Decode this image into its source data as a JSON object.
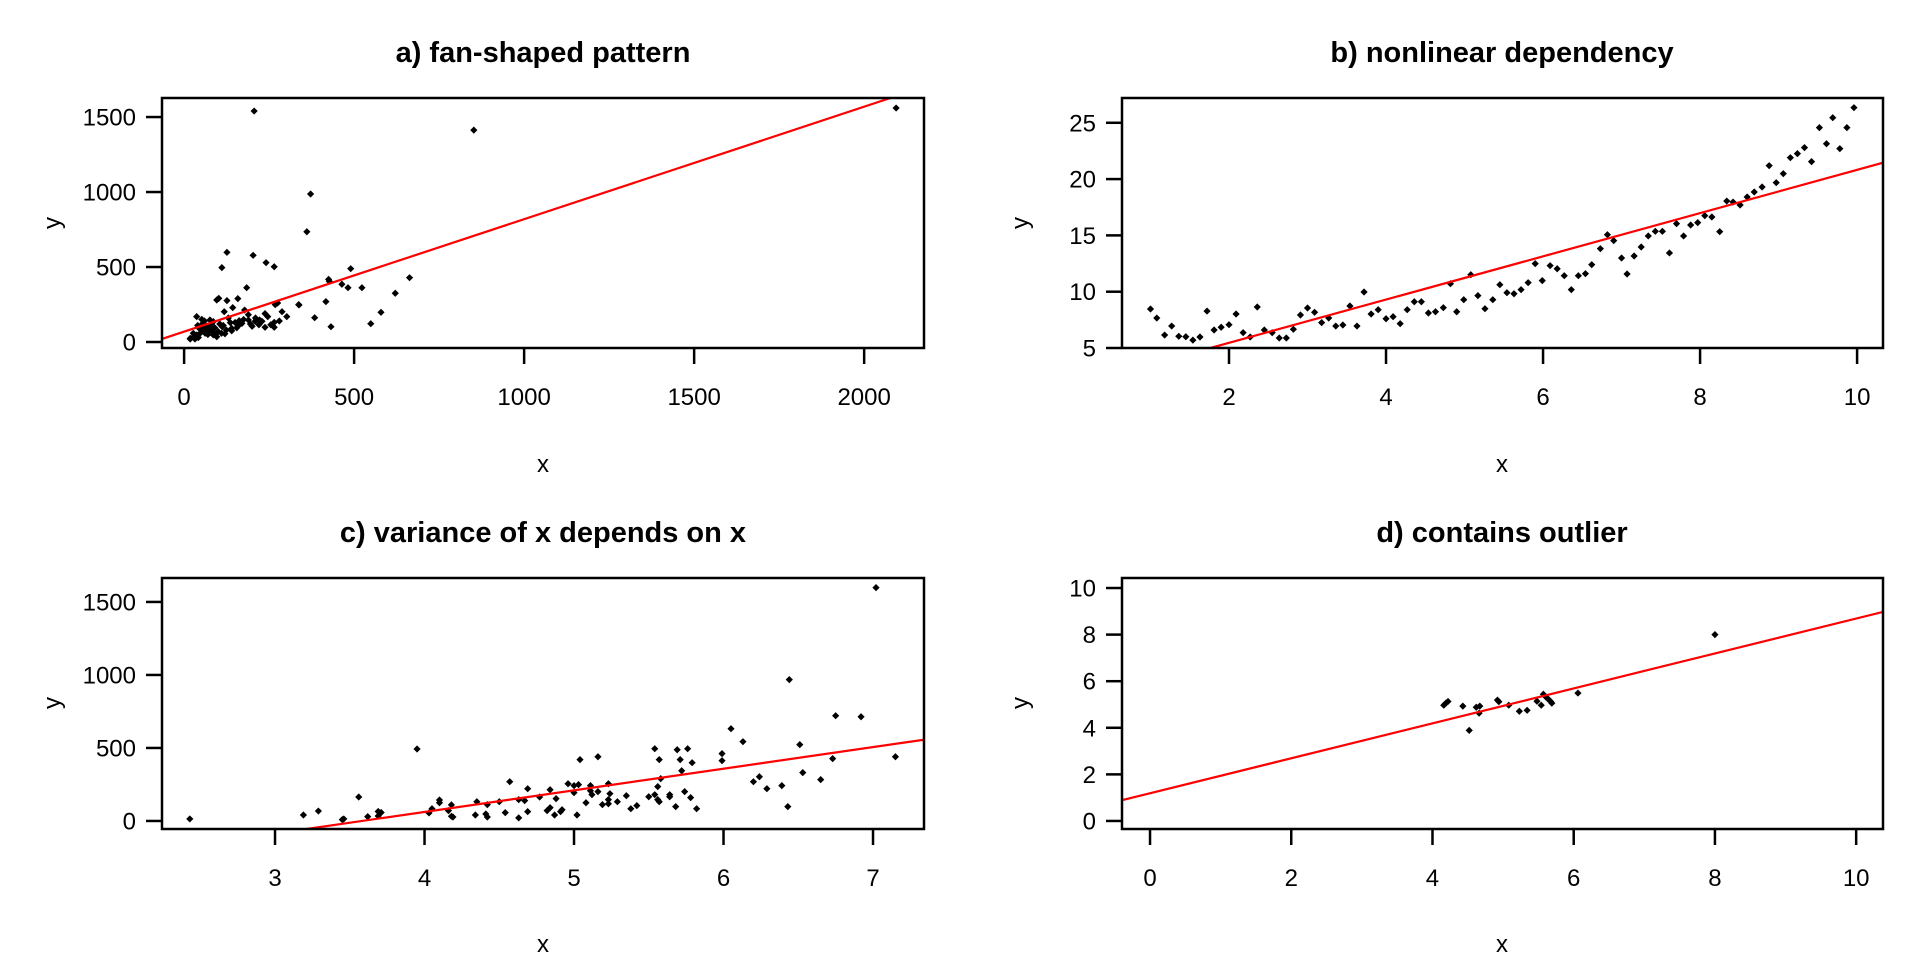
{
  "colors": {
    "points": "#000000",
    "fit_line": "#ff0000",
    "frame": "#000000",
    "background": "#ffffff"
  },
  "chart_data": [
    {
      "id": "a",
      "type": "scatter",
      "title": "a) fan-shaped pattern",
      "xlabel": "x",
      "ylabel": "y",
      "xlim": [
        -65,
        2176
      ],
      "ylim": [
        -40,
        1627
      ],
      "xticks": [
        0,
        500,
        1000,
        1500,
        2000
      ],
      "yticks": [
        0,
        500,
        1000,
        1500
      ],
      "xtick_labels": [
        "0",
        "500",
        "1000",
        "1500",
        "2000"
      ],
      "ytick_labels": [
        "0",
        "500",
        "1000",
        "1500"
      ],
      "fit_line": {
        "intercept": 69,
        "slope": 0.75
      },
      "points": [
        [
          206,
          1540
        ],
        [
          852,
          1413
        ],
        [
          2094,
          1560
        ],
        [
          372,
          987
        ],
        [
          361,
          735
        ],
        [
          126,
          598
        ],
        [
          111,
          496
        ],
        [
          203,
          578
        ],
        [
          241,
          529
        ],
        [
          265,
          502
        ],
        [
          490,
          489
        ],
        [
          663,
          429
        ],
        [
          184,
          362
        ],
        [
          425,
          418
        ],
        [
          427,
          405
        ],
        [
          464,
          385
        ],
        [
          482,
          362
        ],
        [
          523,
          362
        ],
        [
          621,
          325
        ],
        [
          579,
          198
        ],
        [
          549,
          122
        ],
        [
          432,
          102
        ],
        [
          417,
          269
        ],
        [
          384,
          162
        ],
        [
          337,
          249
        ],
        [
          302,
          169
        ],
        [
          288,
          202
        ],
        [
          268,
          249
        ],
        [
          275,
          260
        ],
        [
          96,
          280
        ],
        [
          102,
          291
        ],
        [
          126,
          276
        ],
        [
          158,
          289
        ],
        [
          143,
          229
        ],
        [
          178,
          213
        ],
        [
          118,
          202
        ],
        [
          238,
          189
        ],
        [
          246,
          169
        ],
        [
          265,
          131
        ],
        [
          265,
          98
        ],
        [
          238,
          98
        ],
        [
          229,
          138
        ],
        [
          222,
          147
        ],
        [
          209,
          138
        ],
        [
          189,
          182
        ],
        [
          189,
          147
        ],
        [
          170,
          124
        ],
        [
          162,
          142
        ],
        [
          136,
          129
        ],
        [
          140,
          91
        ],
        [
          124,
          80
        ],
        [
          112,
          102
        ],
        [
          110,
          58
        ],
        [
          96,
          35
        ],
        [
          37,
          169
        ],
        [
          52,
          151
        ],
        [
          55,
          124
        ],
        [
          76,
          147
        ],
        [
          86,
          136
        ],
        [
          67,
          102
        ],
        [
          62,
          58
        ],
        [
          18,
          24
        ],
        [
          32,
          20
        ],
        [
          37,
          47
        ],
        [
          47,
          58
        ],
        [
          76,
          80
        ],
        [
          86,
          47
        ],
        [
          96,
          58
        ],
        [
          52,
          80
        ],
        [
          57,
          102
        ],
        [
          72,
          91
        ],
        [
          27,
          58
        ],
        [
          18,
          20
        ],
        [
          338,
          247
        ],
        [
          40,
          110
        ],
        [
          45,
          90
        ],
        [
          60,
          140
        ],
        [
          65,
          75
        ],
        [
          80,
          120
        ],
        [
          90,
          95
        ],
        [
          100,
          70
        ],
        [
          105,
          120
        ],
        [
          115,
          110
        ],
        [
          130,
          160
        ],
        [
          150,
          130
        ],
        [
          160,
          110
        ],
        [
          175,
          150
        ],
        [
          195,
          120
        ],
        [
          210,
          160
        ],
        [
          220,
          115
        ],
        [
          30,
          40
        ],
        [
          42,
          30
        ],
        [
          70,
          50
        ],
        [
          85,
          65
        ],
        [
          120,
          55
        ],
        [
          140,
          75
        ],
        [
          155,
          95
        ],
        [
          200,
          105
        ],
        [
          255,
          115
        ],
        [
          280,
          140
        ]
      ]
    },
    {
      "id": "b",
      "type": "scatter",
      "title": "b) nonlinear dependency",
      "xlabel": "x",
      "ylabel": "y",
      "xlim": [
        0.637,
        10.33
      ],
      "ylim": [
        5,
        27.2
      ],
      "xticks": [
        2,
        4,
        6,
        8,
        10
      ],
      "yticks": [
        5,
        10,
        15,
        20,
        25
      ],
      "xtick_labels": [
        "2",
        "4",
        "6",
        "8",
        "10"
      ],
      "ytick_labels": [
        "5",
        "10",
        "15",
        "20",
        "25"
      ],
      "fit_line": {
        "intercept": 1.62,
        "slope": 1.92
      },
      "points": [
        [
          1.0,
          8.46
        ],
        [
          1.08,
          7.66
        ],
        [
          1.18,
          6.15
        ],
        [
          1.27,
          6.95
        ],
        [
          1.36,
          6.04
        ],
        [
          1.45,
          6.0
        ],
        [
          1.54,
          5.7
        ],
        [
          1.63,
          5.98
        ],
        [
          1.72,
          8.28
        ],
        [
          1.81,
          6.6
        ],
        [
          1.9,
          6.84
        ],
        [
          2.0,
          7.07
        ],
        [
          2.09,
          8.02
        ],
        [
          2.18,
          6.36
        ],
        [
          2.27,
          5.98
        ],
        [
          2.36,
          8.64
        ],
        [
          2.45,
          6.6
        ],
        [
          2.55,
          6.36
        ],
        [
          2.64,
          5.89
        ],
        [
          2.73,
          5.89
        ],
        [
          2.82,
          6.66
        ],
        [
          2.91,
          7.93
        ],
        [
          3.0,
          8.55
        ],
        [
          3.09,
          8.17
        ],
        [
          3.18,
          7.25
        ],
        [
          3.27,
          7.66
        ],
        [
          3.36,
          6.95
        ],
        [
          3.45,
          7.04
        ],
        [
          3.54,
          8.73
        ],
        [
          3.63,
          6.95
        ],
        [
          3.72,
          9.97
        ],
        [
          3.81,
          8.02
        ],
        [
          3.9,
          8.4
        ],
        [
          4.0,
          7.6
        ],
        [
          4.09,
          7.78
        ],
        [
          4.18,
          7.16
        ],
        [
          4.27,
          8.4
        ],
        [
          4.36,
          9.11
        ],
        [
          4.45,
          9.11
        ],
        [
          4.54,
          8.11
        ],
        [
          4.63,
          8.22
        ],
        [
          4.73,
          8.58
        ],
        [
          4.82,
          10.71
        ],
        [
          4.9,
          8.22
        ],
        [
          4.99,
          9.29
        ],
        [
          5.08,
          11.51
        ],
        [
          5.17,
          9.65
        ],
        [
          5.26,
          8.49
        ],
        [
          5.36,
          9.29
        ],
        [
          5.45,
          10.62
        ],
        [
          5.54,
          9.91
        ],
        [
          5.63,
          9.82
        ],
        [
          5.72,
          10.18
        ],
        [
          5.81,
          10.8
        ],
        [
          5.9,
          12.49
        ],
        [
          5.99,
          10.98
        ],
        [
          6.09,
          12.31
        ],
        [
          6.18,
          12.04
        ],
        [
          6.27,
          11.42
        ],
        [
          6.36,
          10.18
        ],
        [
          6.45,
          11.42
        ],
        [
          6.54,
          11.6
        ],
        [
          6.62,
          12.4
        ],
        [
          6.73,
          13.82
        ],
        [
          6.82,
          15.06
        ],
        [
          6.9,
          14.53
        ],
        [
          7.0,
          12.99
        ],
        [
          7.07,
          11.57
        ],
        [
          7.16,
          13.17
        ],
        [
          7.25,
          13.97
        ],
        [
          7.34,
          14.95
        ],
        [
          7.43,
          15.36
        ],
        [
          7.52,
          15.36
        ],
        [
          7.61,
          13.44
        ],
        [
          7.7,
          16.04
        ],
        [
          7.79,
          14.95
        ],
        [
          7.88,
          15.92
        ],
        [
          7.97,
          16.13
        ],
        [
          8.06,
          16.75
        ],
        [
          8.15,
          16.63
        ],
        [
          8.25,
          15.33
        ],
        [
          8.34,
          18.05
        ],
        [
          8.42,
          17.96
        ],
        [
          8.51,
          17.7
        ],
        [
          8.6,
          18.41
        ],
        [
          8.69,
          18.85
        ],
        [
          8.79,
          19.3
        ],
        [
          8.88,
          21.19
        ],
        [
          8.97,
          19.68
        ],
        [
          9.06,
          20.48
        ],
        [
          9.15,
          21.9
        ],
        [
          9.24,
          22.26
        ],
        [
          9.33,
          22.79
        ],
        [
          9.42,
          21.55
        ],
        [
          9.52,
          24.57
        ],
        [
          9.61,
          23.14
        ],
        [
          9.69,
          25.45
        ],
        [
          9.78,
          22.7
        ],
        [
          9.87,
          24.57
        ],
        [
          9.96,
          26.34
        ]
      ]
    },
    {
      "id": "c",
      "type": "scatter",
      "title": "c) variance of x depends on x",
      "xlabel": "x",
      "ylabel": "y",
      "xlim": [
        2.244,
        7.341
      ],
      "ylim": [
        -55,
        1664
      ],
      "xticks": [
        3,
        4,
        5,
        6,
        7
      ],
      "yticks": [
        0,
        500,
        1000,
        1500
      ],
      "xtick_labels": [
        "3",
        "4",
        "5",
        "6",
        "7"
      ],
      "ytick_labels": [
        "0",
        "500",
        "1000",
        "1500"
      ],
      "fit_line": {
        "intercept": -530,
        "slope": 148
      },
      "points": [
        [
          2.43,
          14
        ],
        [
          3.19,
          41
        ],
        [
          3.29,
          68
        ],
        [
          3.45,
          9
        ],
        [
          3.46,
          14
        ],
        [
          3.56,
          164
        ],
        [
          3.62,
          30
        ],
        [
          3.69,
          34
        ],
        [
          3.69,
          65
        ],
        [
          3.71,
          58
        ],
        [
          3.95,
          493
        ],
        [
          4.03,
          55
        ],
        [
          4.05,
          84
        ],
        [
          4.1,
          125
        ],
        [
          4.1,
          144
        ],
        [
          4.16,
          71
        ],
        [
          4.18,
          110
        ],
        [
          4.18,
          32
        ],
        [
          4.19,
          27
        ],
        [
          4.34,
          41
        ],
        [
          4.35,
          132
        ],
        [
          4.41,
          48
        ],
        [
          4.42,
          27
        ],
        [
          4.42,
          112
        ],
        [
          4.5,
          132
        ],
        [
          4.54,
          57
        ],
        [
          4.57,
          269
        ],
        [
          4.63,
          21
        ],
        [
          4.63,
          146
        ],
        [
          4.67,
          139
        ],
        [
          4.69,
          64
        ],
        [
          4.69,
          221
        ],
        [
          4.77,
          164
        ],
        [
          4.82,
          71
        ],
        [
          4.84,
          91
        ],
        [
          4.84,
          214
        ],
        [
          4.87,
          41
        ],
        [
          4.88,
          153
        ],
        [
          4.91,
          64
        ],
        [
          4.92,
          77
        ],
        [
          4.96,
          255
        ],
        [
          5.0,
          194
        ],
        [
          5.0,
          242
        ],
        [
          5.03,
          249
        ],
        [
          5.02,
          41
        ],
        [
          5.04,
          420
        ],
        [
          5.08,
          125
        ],
        [
          5.11,
          242
        ],
        [
          5.11,
          207
        ],
        [
          5.12,
          180
        ],
        [
          5.16,
          440
        ],
        [
          5.16,
          201
        ],
        [
          5.19,
          112
        ],
        [
          5.23,
          255
        ],
        [
          5.24,
          187
        ],
        [
          5.23,
          146
        ],
        [
          5.23,
          118
        ],
        [
          5.29,
          132
        ],
        [
          5.35,
          173
        ],
        [
          5.38,
          84
        ],
        [
          5.42,
          105
        ],
        [
          5.5,
          166
        ],
        [
          5.54,
          180
        ],
        [
          5.54,
          495
        ],
        [
          5.56,
          235
        ],
        [
          5.57,
          420
        ],
        [
          5.56,
          146
        ],
        [
          5.57,
          132
        ],
        [
          5.58,
          290
        ],
        [
          5.64,
          166
        ],
        [
          5.64,
          180
        ],
        [
          5.68,
          98
        ],
        [
          5.69,
          488
        ],
        [
          5.71,
          420
        ],
        [
          5.72,
          344
        ],
        [
          5.74,
          201
        ],
        [
          5.76,
          495
        ],
        [
          5.78,
          160
        ],
        [
          5.79,
          399
        ],
        [
          5.82,
          84
        ],
        [
          5.99,
          461
        ],
        [
          5.99,
          413
        ],
        [
          6.05,
          632
        ],
        [
          6.13,
          543
        ],
        [
          6.2,
          269
        ],
        [
          6.24,
          303
        ],
        [
          6.29,
          221
        ],
        [
          6.39,
          242
        ],
        [
          6.43,
          98
        ],
        [
          6.44,
          968
        ],
        [
          6.51,
          523
        ],
        [
          6.53,
          331
        ],
        [
          6.65,
          283
        ],
        [
          6.73,
          427
        ],
        [
          6.75,
          721
        ],
        [
          6.92,
          714
        ],
        [
          7.02,
          1598
        ],
        [
          7.15,
          440
        ]
      ]
    },
    {
      "id": "d",
      "type": "scatter",
      "title": "d) contains outlier",
      "xlabel": "x",
      "ylabel": "y",
      "xlim": [
        -0.397,
        10.38
      ],
      "ylim": [
        -0.345,
        10.43
      ],
      "xticks": [
        0,
        2,
        4,
        6,
        8,
        10
      ],
      "yticks": [
        0,
        2,
        4,
        6,
        8,
        10
      ],
      "xtick_labels": [
        "0",
        "2",
        "4",
        "6",
        "8",
        "10"
      ],
      "ytick_labels": [
        "0",
        "2",
        "4",
        "6",
        "8",
        "10"
      ],
      "fit_line": {
        "intercept": 1.19,
        "slope": 0.75
      },
      "points": [
        [
          4.16,
          4.97
        ],
        [
          4.19,
          5.06
        ],
        [
          4.22,
          5.13
        ],
        [
          4.43,
          4.93
        ],
        [
          4.52,
          3.89
        ],
        [
          4.62,
          4.88
        ],
        [
          4.66,
          4.63
        ],
        [
          4.67,
          4.93
        ],
        [
          4.92,
          5.19
        ],
        [
          4.94,
          5.12
        ],
        [
          5.08,
          4.97
        ],
        [
          5.23,
          4.71
        ],
        [
          5.34,
          4.75
        ],
        [
          5.48,
          5.14
        ],
        [
          5.54,
          4.97
        ],
        [
          5.57,
          5.44
        ],
        [
          5.61,
          5.31
        ],
        [
          5.64,
          5.23
        ],
        [
          5.67,
          5.14
        ],
        [
          5.69,
          5.06
        ],
        [
          6.06,
          5.49
        ],
        [
          8.0,
          8.0
        ]
      ]
    }
  ]
}
